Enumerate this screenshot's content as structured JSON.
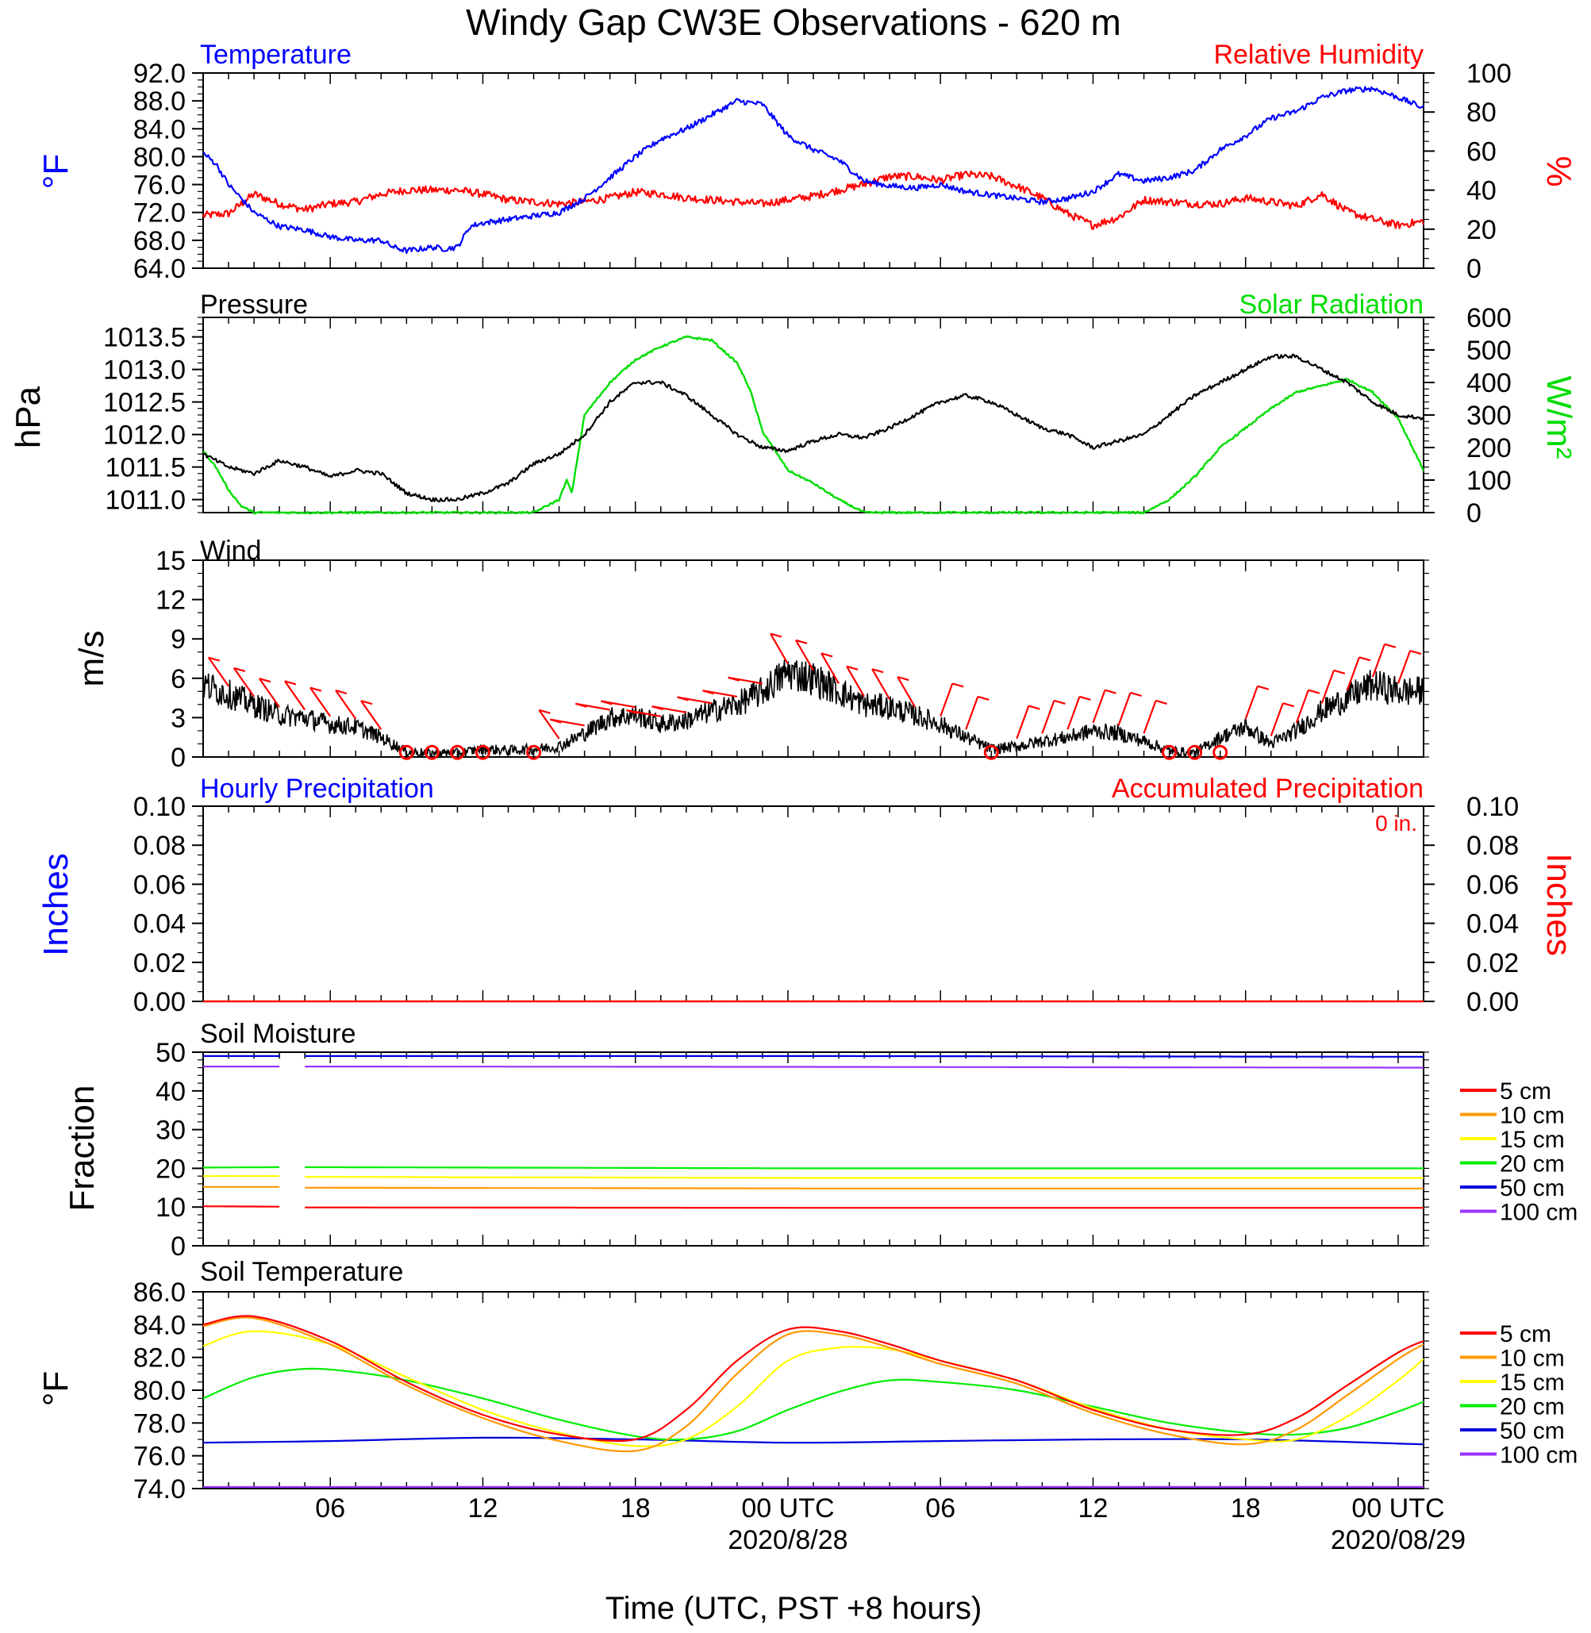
{
  "title": "Windy Gap CW3E Observations - 620 m",
  "x_axis": {
    "label": "Time (UTC, PST +8 hours)",
    "ticks": [
      {
        "h": 6,
        "label": "06"
      },
      {
        "h": 12,
        "label": "12"
      },
      {
        "h": 18,
        "label": "18"
      },
      {
        "h": 24,
        "label": "00 UTC",
        "date": "2020/8/28"
      },
      {
        "h": 30,
        "label": "06"
      },
      {
        "h": 36,
        "label": "12"
      },
      {
        "h": 42,
        "label": "18"
      },
      {
        "h": 48,
        "label": "00 UTC",
        "date": "2020/08/29"
      }
    ]
  },
  "panels": {
    "temp_rh": {
      "left_title": "Temperature",
      "right_title": "Relative Humidity",
      "left_unit": "°F",
      "right_unit": "%",
      "left_color": "#0000ff",
      "right_color": "#ff0000"
    },
    "pressure": {
      "left_title": "Pressure",
      "right_title": "Solar Radiation",
      "left_unit": "hPa",
      "right_unit": "W/m²",
      "left_color": "#000000",
      "right_color": "#00dd00"
    },
    "wind": {
      "left_title": "Wind",
      "left_unit": "m/s"
    },
    "precip": {
      "left_title": "Hourly Precipitation",
      "right_title": "Accumulated Precipitation",
      "left_unit": "Inches",
      "right_unit": "Inches",
      "total": "0 in.",
      "left_color": "#0000ff",
      "right_color": "#ff0000"
    },
    "soil_moist": {
      "left_title": "Soil Moisture",
      "left_unit": "Fraction"
    },
    "soil_temp": {
      "left_title": "Soil Temperature",
      "left_unit": "°F"
    }
  },
  "legend": [
    {
      "label": "5 cm",
      "color": "#ff0000"
    },
    {
      "label": "10 cm",
      "color": "#ff9900"
    },
    {
      "label": "15 cm",
      "color": "#ffff00"
    },
    {
      "label": "20 cm",
      "color": "#00ee00"
    },
    {
      "label": "50 cm",
      "color": "#0000dd"
    },
    {
      "label": "100 cm",
      "color": "#9933ff"
    }
  ],
  "chart_data": [
    {
      "type": "line",
      "name": "Temperature / Relative Humidity",
      "x_unit": "hours from 2020-08-27 00 UTC",
      "xlim": [
        1,
        49
      ],
      "ylim_left": [
        64,
        92
      ],
      "yticks_left": [
        "92.0",
        "88.0",
        "84.0",
        "80.0",
        "76.0",
        "72.0",
        "68.0",
        "64.0"
      ],
      "ylim_right": [
        0,
        100
      ],
      "yticks_right": [
        "100",
        "80",
        "60",
        "40",
        "20",
        "0"
      ],
      "series": [
        {
          "name": "Temperature",
          "axis": "left",
          "color": "#0000ff",
          "x": [
            1,
            1.5,
            2,
            3,
            4,
            5,
            6,
            7,
            8,
            8.5,
            9,
            10,
            10.5,
            11,
            11.5,
            12,
            13,
            14,
            15,
            16,
            17,
            18,
            19,
            20,
            21,
            22,
            23,
            24,
            25,
            26,
            27,
            28,
            29,
            30,
            31,
            32,
            33,
            34,
            35,
            36,
            37,
            38,
            39,
            40,
            41,
            42,
            43,
            44,
            45,
            46,
            47,
            48,
            49
          ],
          "y": [
            80.5,
            79,
            76,
            72,
            70,
            69.5,
            68.5,
            68,
            68,
            67,
            66.5,
            67,
            66.8,
            67,
            70,
            70.5,
            71,
            71.5,
            72,
            74,
            77,
            80,
            82.5,
            84,
            86,
            88,
            87.5,
            83,
            81,
            79.5,
            76.5,
            75.8,
            75.5,
            76,
            75,
            74.5,
            74,
            73.5,
            74,
            75,
            77.5,
            76.5,
            77,
            78,
            81,
            83,
            85.5,
            86.5,
            88.5,
            89.5,
            89.8,
            88.5,
            87
          ]
        },
        {
          "name": "Relative Humidity",
          "axis": "right",
          "color": "#ff0000",
          "x": [
            1,
            2,
            3,
            4,
            5,
            6,
            7,
            8,
            9,
            10,
            11,
            12,
            13,
            14,
            15,
            16,
            17,
            18,
            19,
            20,
            21,
            22,
            23,
            24,
            25,
            26,
            27,
            28,
            29,
            30,
            31,
            32,
            33,
            34,
            35,
            36,
            37,
            38,
            39,
            40,
            41,
            42,
            43,
            44,
            45,
            46,
            47,
            48,
            49
          ],
          "y": [
            27,
            28,
            38,
            33,
            30,
            33,
            34,
            38,
            40,
            40,
            40,
            38,
            35,
            34,
            33,
            34,
            36,
            39,
            38,
            36,
            35,
            34,
            33,
            35,
            37,
            40,
            43,
            47,
            47,
            45,
            48,
            47,
            42,
            36,
            28,
            22,
            26,
            35,
            34,
            33,
            33,
            36,
            34,
            32,
            38,
            29,
            25,
            22,
            24
          ]
        }
      ]
    },
    {
      "type": "line",
      "name": "Pressure / Solar Radiation",
      "xlim": [
        1,
        49
      ],
      "ylim_left": [
        1010.8,
        1013.8
      ],
      "yticks_left": [
        "1013.5",
        "1013.0",
        "1012.5",
        "1012.0",
        "1011.5",
        "1011.0"
      ],
      "ylim_right": [
        0,
        600
      ],
      "yticks_right": [
        "600",
        "500",
        "400",
        "300",
        "200",
        "100",
        "0"
      ],
      "series": [
        {
          "name": "Pressure",
          "axis": "left",
          "color": "#000000",
          "x": [
            1,
            2,
            3,
            4,
            5,
            6,
            7,
            8,
            9,
            10,
            11,
            12,
            13,
            14,
            15,
            16,
            17,
            18,
            19,
            20,
            21,
            22,
            23,
            24,
            25,
            26,
            27,
            28,
            29,
            30,
            31,
            32,
            33,
            34,
            35,
            36,
            37,
            38,
            39,
            40,
            41,
            42,
            43,
            44,
            45,
            46,
            47,
            48,
            49
          ],
          "y": [
            1011.7,
            1011.5,
            1011.4,
            1011.6,
            1011.5,
            1011.35,
            1011.45,
            1011.4,
            1011.1,
            1011.0,
            1011.0,
            1011.1,
            1011.25,
            1011.55,
            1011.7,
            1012.0,
            1012.5,
            1012.8,
            1012.8,
            1012.6,
            1012.3,
            1012.0,
            1011.8,
            1011.75,
            1011.9,
            1012.0,
            1011.95,
            1012.1,
            1012.3,
            1012.5,
            1012.6,
            1012.5,
            1012.3,
            1012.1,
            1012.0,
            1011.8,
            1011.9,
            1012.0,
            1012.3,
            1012.6,
            1012.8,
            1013.0,
            1013.2,
            1013.2,
            1013.0,
            1012.8,
            1012.5,
            1012.3,
            1012.25
          ]
        },
        {
          "name": "Solar Radiation",
          "axis": "right",
          "color": "#00dd00",
          "x": [
            1,
            1.5,
            2,
            2.5,
            3,
            14,
            15,
            15.3,
            15.5,
            16,
            17,
            18,
            19,
            20,
            21,
            22,
            22.5,
            23,
            24,
            25,
            26,
            27,
            28,
            29,
            38,
            39,
            40,
            41,
            42,
            43,
            44,
            45,
            46,
            47,
            48,
            49
          ],
          "y": [
            190,
            140,
            70,
            20,
            0,
            0,
            40,
            100,
            60,
            300,
            400,
            470,
            510,
            540,
            530,
            460,
            380,
            250,
            130,
            90,
            40,
            0,
            0,
            0,
            0,
            40,
            110,
            200,
            260,
            320,
            370,
            390,
            410,
            370,
            290,
            130
          ]
        }
      ]
    },
    {
      "type": "line",
      "name": "Wind",
      "xlim": [
        1,
        49
      ],
      "ylim": [
        0,
        15
      ],
      "yticks": [
        "15",
        "12",
        "9",
        "6",
        "3",
        "0"
      ],
      "series": [
        {
          "name": "Wind speed",
          "color": "#000000",
          "x": [
            1,
            2,
            3,
            4,
            5,
            6,
            7,
            8,
            9,
            10,
            11,
            12,
            13,
            14,
            15,
            16,
            17,
            18,
            19,
            20,
            21,
            22,
            23,
            24,
            25,
            26,
            27,
            28,
            29,
            30,
            31,
            32,
            33,
            34,
            35,
            36,
            37,
            38,
            39,
            40,
            41,
            42,
            43,
            44,
            45,
            46,
            47,
            48,
            49
          ],
          "y": [
            5.5,
            4.8,
            4.0,
            3.2,
            3.0,
            2.5,
            2.3,
            1.5,
            0.4,
            0.3,
            0.3,
            0.6,
            0.5,
            0.6,
            0.8,
            1.8,
            3.0,
            3.2,
            2.5,
            2.8,
            3.5,
            4.0,
            5.0,
            6.5,
            6.0,
            5.0,
            4.0,
            3.8,
            3.2,
            2.5,
            1.5,
            0.6,
            0.8,
            1.2,
            1.5,
            2.0,
            1.8,
            1.2,
            0.5,
            0.3,
            1.5,
            2.3,
            1.0,
            2.0,
            3.5,
            4.5,
            5.5,
            5.0,
            5.0
          ]
        }
      ],
      "calm_hours": [
        9,
        10,
        11,
        12,
        14,
        32,
        39,
        40,
        41
      ]
    },
    {
      "type": "line",
      "name": "Precipitation",
      "xlim": [
        1,
        49
      ],
      "ylim_left": [
        0,
        0.1
      ],
      "yticks_left": [
        "0.10",
        "0.08",
        "0.06",
        "0.04",
        "0.02",
        "0.00"
      ],
      "ylim_right": [
        0,
        0.1
      ],
      "yticks_right": [
        "0.10",
        "0.08",
        "0.06",
        "0.04",
        "0.02",
        "0.00"
      ],
      "series": [
        {
          "name": "Hourly Precipitation",
          "axis": "left",
          "color": "#0000ff",
          "x": [
            1,
            49
          ],
          "y": [
            0,
            0
          ]
        },
        {
          "name": "Accumulated Precipitation",
          "axis": "right",
          "color": "#ff0000",
          "x": [
            1,
            49
          ],
          "y": [
            0,
            0
          ]
        }
      ]
    },
    {
      "type": "line",
      "name": "Soil Moisture",
      "xlim": [
        1,
        49
      ],
      "ylim": [
        0,
        50
      ],
      "yticks": [
        "50",
        "40",
        "30",
        "20",
        "10",
        "0"
      ],
      "series": [
        {
          "name": "5 cm",
          "color": "#ff0000",
          "x": [
            1,
            4,
            5,
            25,
            49
          ],
          "y": [
            10.2,
            10.1,
            9.9,
            9.8,
            9.8
          ]
        },
        {
          "name": "10 cm",
          "color": "#ff9900",
          "x": [
            1,
            4,
            5,
            25,
            49
          ],
          "y": [
            15.2,
            15.2,
            15.0,
            14.8,
            14.8
          ]
        },
        {
          "name": "15 cm",
          "color": "#ffff00",
          "x": [
            1,
            4,
            5,
            25,
            49
          ],
          "y": [
            18.0,
            18.0,
            17.8,
            17.5,
            17.5
          ]
        },
        {
          "name": "20 cm",
          "color": "#00ee00",
          "x": [
            1,
            4,
            5,
            25,
            49
          ],
          "y": [
            20.2,
            20.3,
            20.3,
            20.0,
            20.0
          ]
        },
        {
          "name": "50 cm",
          "color": "#0000dd",
          "x": [
            1,
            4,
            5,
            25,
            49
          ],
          "y": [
            49.0,
            49.0,
            49.0,
            49.0,
            48.8
          ]
        },
        {
          "name": "100 cm",
          "color": "#9933ff",
          "x": [
            1,
            4,
            5,
            25,
            49
          ],
          "y": [
            46.3,
            46.3,
            46.3,
            46.2,
            46.0
          ]
        }
      ],
      "gap_hours": [
        4.0,
        5.0
      ]
    },
    {
      "type": "line",
      "name": "Soil Temperature",
      "xlim": [
        1,
        49
      ],
      "ylim": [
        74,
        86
      ],
      "yticks": [
        "86.0",
        "84.0",
        "82.0",
        "80.0",
        "78.0",
        "76.0",
        "74.0"
      ],
      "series": [
        {
          "name": "5 cm",
          "color": "#ff0000",
          "x": [
            1,
            3,
            6,
            9,
            12,
            15,
            18,
            20,
            22,
            24,
            26,
            28,
            30,
            33,
            36,
            39,
            42,
            44,
            46,
            48,
            49
          ],
          "y": [
            84.0,
            84.5,
            83.0,
            80.5,
            78.5,
            77.3,
            77.0,
            78.8,
            81.8,
            83.7,
            83.6,
            82.8,
            81.8,
            80.6,
            78.8,
            77.6,
            77.3,
            78.3,
            80.3,
            82.3,
            83.0
          ]
        },
        {
          "name": "10 cm",
          "color": "#ff9900",
          "x": [
            1,
            3,
            6,
            9,
            12,
            15,
            18,
            20,
            22,
            24,
            26,
            28,
            30,
            33,
            36,
            39,
            42,
            44,
            46,
            48,
            49
          ],
          "y": [
            83.9,
            84.4,
            82.8,
            80.3,
            78.3,
            76.9,
            76.3,
            77.8,
            81.0,
            83.4,
            83.4,
            82.6,
            81.6,
            80.4,
            78.6,
            77.3,
            76.7,
            77.6,
            79.7,
            81.9,
            82.8
          ]
        },
        {
          "name": "15 cm",
          "color": "#ffff00",
          "x": [
            1,
            3,
            6,
            9,
            12,
            15,
            18,
            20,
            22,
            24,
            26,
            28,
            30,
            33,
            36,
            39,
            42,
            44,
            46,
            48,
            49
          ],
          "y": [
            82.7,
            83.6,
            82.8,
            80.8,
            78.8,
            77.4,
            76.6,
            77.0,
            79.0,
            81.8,
            82.6,
            82.5,
            81.8,
            80.6,
            78.9,
            77.6,
            77.0,
            77.0,
            78.4,
            80.6,
            81.9
          ]
        },
        {
          "name": "20 cm",
          "color": "#00ee00",
          "x": [
            1,
            3,
            5,
            7,
            9,
            12,
            15,
            18,
            20,
            22,
            24,
            26,
            28,
            30,
            33,
            36,
            39,
            42,
            44,
            46,
            48,
            49
          ],
          "y": [
            79.5,
            80.8,
            81.3,
            81.1,
            80.6,
            79.5,
            78.2,
            77.2,
            77.0,
            77.5,
            78.8,
            79.9,
            80.6,
            80.5,
            80.0,
            79.0,
            78.0,
            77.4,
            77.3,
            77.7,
            78.7,
            79.3
          ]
        },
        {
          "name": "50 cm",
          "color": "#0000dd",
          "x": [
            1,
            6,
            12,
            18,
            24,
            30,
            36,
            42,
            49
          ],
          "y": [
            76.8,
            76.9,
            77.1,
            77.0,
            76.8,
            76.9,
            77.0,
            77.0,
            76.7
          ]
        },
        {
          "name": "100 cm",
          "color": "#9933ff",
          "x": [
            1,
            12,
            24,
            36,
            49
          ],
          "y": [
            74.1,
            74.1,
            74.1,
            74.1,
            74.1
          ]
        }
      ]
    }
  ]
}
